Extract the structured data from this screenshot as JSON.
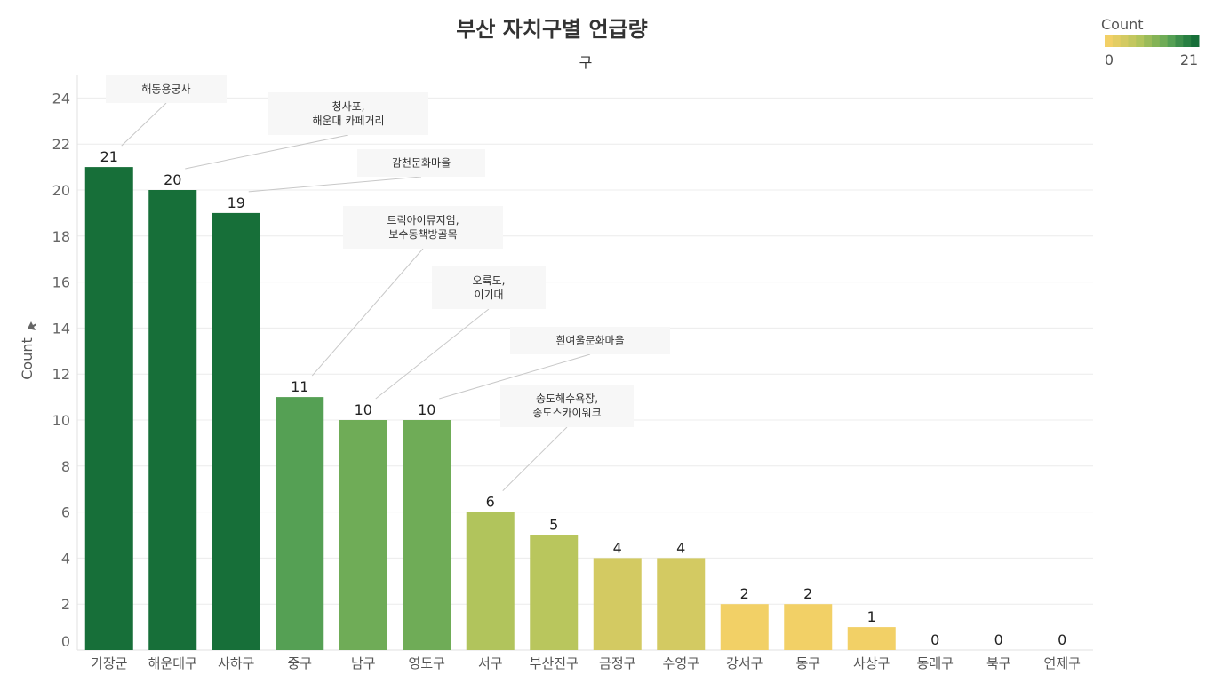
{
  "chart_data": {
    "type": "bar",
    "title": "부산 자치구별 언급량",
    "subtitle": "구",
    "ylabel": "Count",
    "ylim": [
      0,
      25
    ],
    "yticks": [
      0,
      2,
      4,
      6,
      8,
      10,
      12,
      14,
      16,
      18,
      20,
      22,
      24
    ],
    "grid": true,
    "categories": [
      "기장군",
      "해운대구",
      "사하구",
      "중구",
      "남구",
      "영도구",
      "서구",
      "부산진구",
      "금정구",
      "수영구",
      "강서구",
      "동구",
      "사상구",
      "동래구",
      "북구",
      "연제구"
    ],
    "values": [
      21,
      20,
      19,
      11,
      10,
      10,
      6,
      5,
      4,
      4,
      2,
      2,
      1,
      0,
      0,
      0
    ],
    "bar_colors": [
      "#176f39",
      "#176f39",
      "#176f39",
      "#55a054",
      "#6fac57",
      "#6fac57",
      "#b1c45c",
      "#b9c65d",
      "#d3ca62",
      "#d3ca62",
      "#f2d066",
      "#f2d066",
      "#f2d066",
      "#f2d066",
      "#f2d066",
      "#f2d066"
    ],
    "annotations": [
      {
        "category": "기장군",
        "lines": [
          "해동용궁사"
        ]
      },
      {
        "category": "해운대구",
        "lines": [
          "청사포,",
          "해운대 카페거리"
        ]
      },
      {
        "category": "사하구",
        "lines": [
          "감천문화마을"
        ]
      },
      {
        "category": "중구",
        "lines": [
          "트릭아이뮤지엄,",
          "보수동책방골목"
        ]
      },
      {
        "category": "남구",
        "lines": [
          "오륙도,",
          "이기대"
        ]
      },
      {
        "category": "영도구",
        "lines": [
          "흰여울문화마을"
        ]
      },
      {
        "category": "서구",
        "lines": [
          "송도해수욕장,",
          "송도스카이워크"
        ]
      }
    ],
    "legend": {
      "title": "Count",
      "min_label": "0",
      "max_label": "21",
      "placement": "top-right",
      "colors": [
        "#f2d066",
        "#e3cd63",
        "#d3ca62",
        "#c3c75f",
        "#b1c45c",
        "#9abb59",
        "#84b356",
        "#6fac57",
        "#55a054",
        "#3d8e4b",
        "#287f42",
        "#176f39"
      ]
    }
  }
}
